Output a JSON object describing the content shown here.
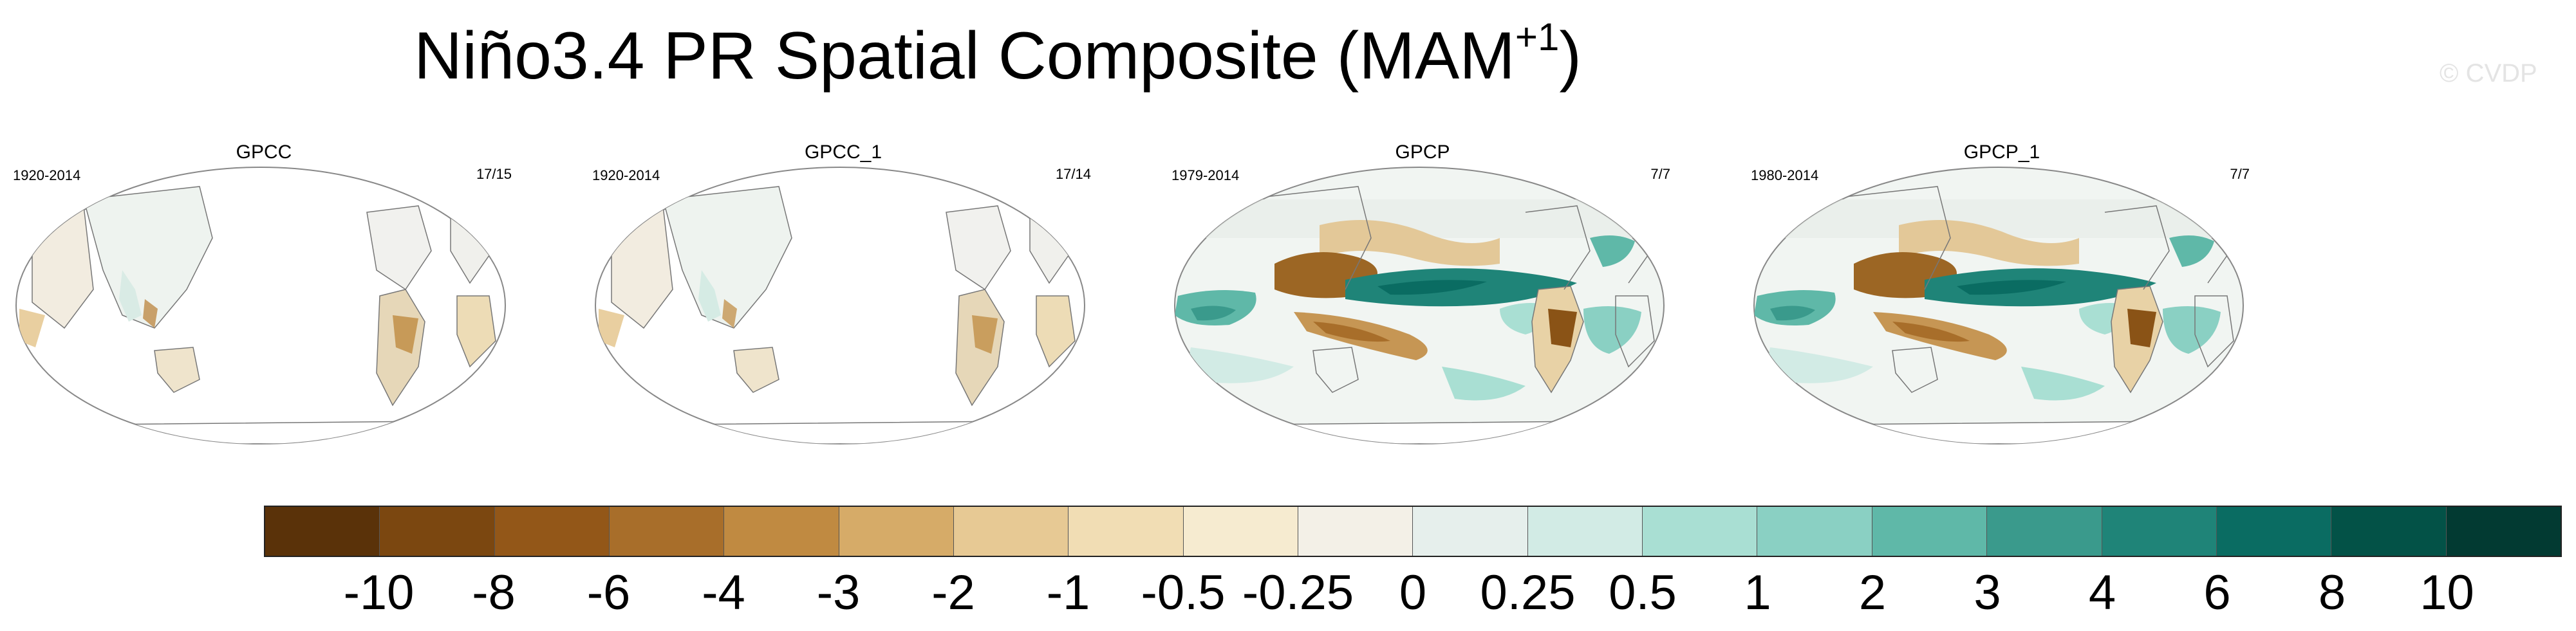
{
  "title": {
    "text": "Niño3.4 PR Spatial Composite (MAM",
    "superscript": "+1",
    "closing": ")"
  },
  "watermark": "© CVDP",
  "panels": [
    {
      "title": "GPCC",
      "range": "1920-2014",
      "count": "17/15"
    },
    {
      "title": "GPCC_1",
      "range": "1920-2014",
      "count": "17/14"
    },
    {
      "title": "GPCP",
      "range": "1979-2014",
      "count": "7/7"
    },
    {
      "title": "GPCP_1",
      "range": "1980-2014",
      "count": "7/7"
    }
  ],
  "colorbar": {
    "colors": [
      "#5a3209",
      "#7b4710",
      "#935718",
      "#a86e2a",
      "#c08a41",
      "#d6ab68",
      "#e7c994",
      "#f1ddb4",
      "#f6ebd0",
      "#f3f0e7",
      "#e6efec",
      "#d2ebe5",
      "#a9dfd3",
      "#8ad0c3",
      "#5fb8a8",
      "#3a9a8c",
      "#1f8478",
      "#0a6c62",
      "#035247",
      "#023a32"
    ],
    "labels": [
      "-10",
      "-8",
      "-6",
      "-4",
      "-3",
      "-2",
      "-1",
      "-0.5",
      "-0.25",
      "0",
      "0.25",
      "0.5",
      "1",
      "2",
      "3",
      "4",
      "6",
      "8",
      "10"
    ]
  }
}
